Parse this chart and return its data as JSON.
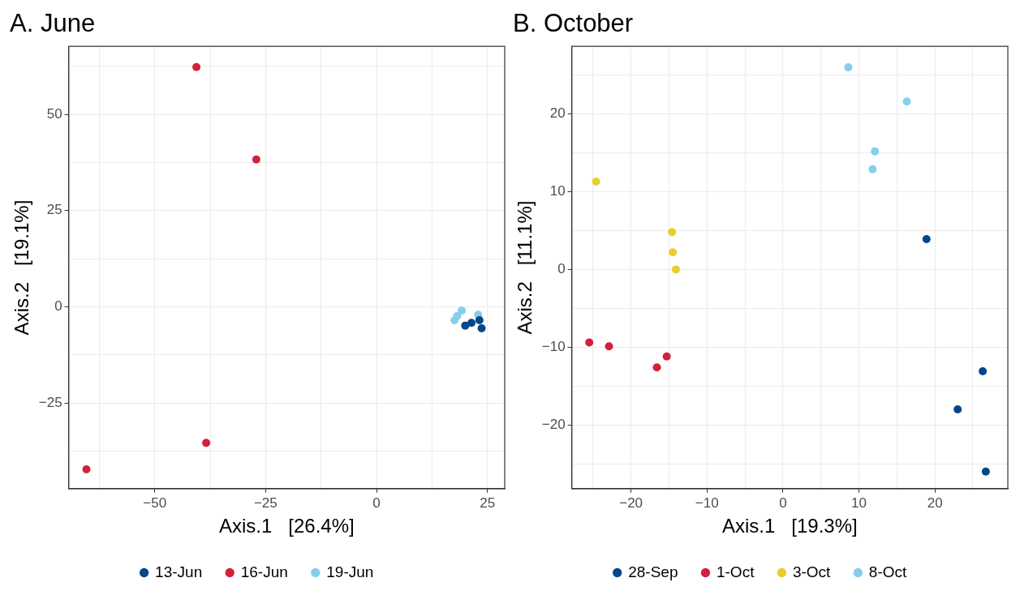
{
  "chart_data": [
    {
      "type": "scatter",
      "title": "A. June",
      "xlabel": "Axis.1   [26.4%]",
      "ylabel": "Axis.2   [19.1%]",
      "xlim": [
        -69.4,
        28.9
      ],
      "ylim": [
        -47.3,
        67.7
      ],
      "xticks": [
        {
          "value": -62.5,
          "label": null
        },
        -50,
        {
          "value": -37.5,
          "label": null
        },
        -25,
        {
          "value": -12.5,
          "label": null
        },
        0,
        {
          "value": 12.5,
          "label": null
        },
        25
      ],
      "yticks": [
        {
          "value": -37.5,
          "label": null
        },
        -25,
        {
          "value": -12.5,
          "label": null
        },
        0,
        {
          "value": 12.5,
          "label": null
        },
        25,
        {
          "value": 37.5,
          "label": null
        },
        50,
        {
          "value": 62.5,
          "label": null
        }
      ],
      "grid": true,
      "legend": "bottom",
      "marker": "circle",
      "series": [
        {
          "name": "13-Jun",
          "color": "#03468b",
          "x": [
            20.0,
            21.4,
            23.2,
            23.7
          ],
          "values": [
            -4.9,
            -4.2,
            -3.5,
            -5.6
          ]
        },
        {
          "name": "16-Jun",
          "color": "#d2213a",
          "x": [
            -40.6,
            -27.1,
            -38.4,
            -65.4
          ],
          "values": [
            62.3,
            38.3,
            -35.4,
            -42.3
          ]
        },
        {
          "name": "19-Jun",
          "color": "#87ceeb",
          "x": [
            17.6,
            18.2,
            19.2,
            22.9
          ],
          "values": [
            -3.5,
            -2.4,
            -1.0,
            -2.1
          ]
        }
      ]
    },
    {
      "type": "scatter",
      "title": "B. October",
      "xlabel": "Axis.1   [19.3%]",
      "ylabel": "Axis.2   [11.1%]",
      "xlim": [
        -27.8,
        29.6
      ],
      "ylim": [
        -28.2,
        28.7
      ],
      "xticks": [
        {
          "value": -25,
          "label": null
        },
        -20,
        {
          "value": -15,
          "label": null
        },
        -10,
        {
          "value": -5,
          "label": null
        },
        0,
        {
          "value": 5,
          "label": null
        },
        10,
        {
          "value": 15,
          "label": null
        },
        20,
        {
          "value": 25,
          "label": null
        }
      ],
      "yticks": [
        {
          "value": -25,
          "label": null
        },
        -20,
        {
          "value": -15,
          "label": null
        },
        -10,
        {
          "value": -5,
          "label": null
        },
        0,
        {
          "value": 5,
          "label": null
        },
        10,
        {
          "value": 15,
          "label": null
        },
        20,
        {
          "value": 25,
          "label": null
        }
      ],
      "grid": true,
      "legend": "bottom",
      "marker": "circle",
      "series": [
        {
          "name": "28-Sep",
          "color": "#03468b",
          "x": [
            18.9,
            26.3,
            23.0,
            26.7
          ],
          "values": [
            3.9,
            -13.1,
            -18.0,
            -26.0
          ]
        },
        {
          "name": "1-Oct",
          "color": "#d2213a",
          "x": [
            -25.5,
            -22.9,
            -15.3,
            -16.6
          ],
          "values": [
            -9.4,
            -9.9,
            -11.2,
            -12.6
          ]
        },
        {
          "name": "3-Oct",
          "color": "#e6cf2b",
          "x": [
            -24.6,
            -14.6,
            -14.5,
            -14.1
          ],
          "values": [
            11.3,
            4.8,
            2.2,
            0.0
          ]
        },
        {
          "name": "8-Oct",
          "color": "#87ceeb",
          "x": [
            8.6,
            16.3,
            12.1,
            11.8
          ],
          "values": [
            26.0,
            21.6,
            15.2,
            12.9
          ]
        }
      ]
    }
  ]
}
